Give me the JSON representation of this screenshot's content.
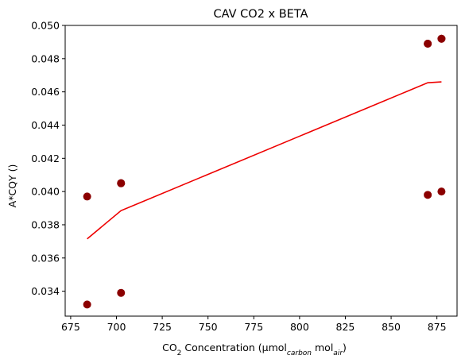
{
  "chart_data": {
    "type": "scatter",
    "title": "CAV CO2 x BETA",
    "xlabel": {
      "prefix": "CO",
      "prefix_sub": "2",
      "middle": " Concentration (µmol",
      "sub1": "carbon",
      "middle2": " mol",
      "sub2": "air",
      "suffix": ")"
    },
    "ylabel": "A*CQY ()",
    "xlim": [
      672,
      886
    ],
    "ylim": [
      0.0325,
      0.05
    ],
    "xticks": [
      675,
      700,
      725,
      750,
      775,
      800,
      825,
      850,
      875
    ],
    "xtick_labels": [
      "675",
      "700",
      "725",
      "750",
      "775",
      "800",
      "825",
      "850",
      "875"
    ],
    "yticks": [
      0.034,
      0.036,
      0.038,
      0.04,
      0.042,
      0.044,
      0.046,
      0.048,
      0.05
    ],
    "ytick_labels": [
      "0.034",
      "0.036",
      "0.038",
      "0.040",
      "0.042",
      "0.044",
      "0.046",
      "0.048",
      "0.050"
    ],
    "grid": false,
    "series": [
      {
        "kind": "scatter",
        "color": "#8b0000",
        "x": [
          684,
          684,
          702.5,
          702.5,
          702.5,
          870,
          870,
          870,
          877.5,
          877.5,
          877.5
        ],
        "y": [
          0.0397,
          0.0332,
          0.0405,
          0.0405,
          0.0339,
          0.0489,
          0.0489,
          0.0398,
          0.0492,
          0.0492,
          0.04
        ]
      },
      {
        "kind": "line",
        "color": "#ee0000",
        "x": [
          684,
          702.5,
          870,
          877.5
        ],
        "y": [
          0.03715,
          0.03885,
          0.04655,
          0.0466
        ]
      }
    ]
  }
}
